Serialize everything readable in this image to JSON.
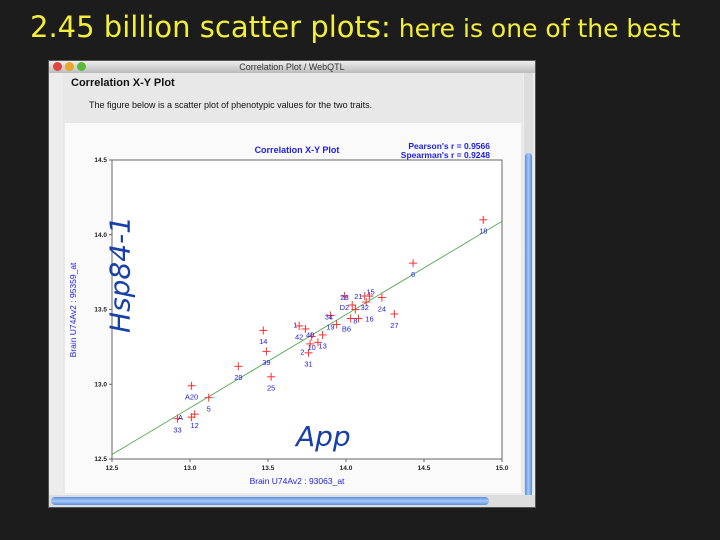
{
  "slide": {
    "title_main": "2.45 billion scatter plots:",
    "title_sub": " here is one of the best"
  },
  "window": {
    "title": "Correlation Plot / WebQTL"
  },
  "page": {
    "heading": "Correlation X-Y Plot",
    "description": "The figure below is a scatter plot of phenotypic values for the two traits."
  },
  "annotations": {
    "y_gene": "Hsp84-1",
    "x_gene": "App"
  },
  "colors": {
    "title": "#f2ee3a",
    "marker": "#ff3030",
    "label": "#2020e0",
    "fit_line": "#40a040"
  },
  "chart_data": {
    "type": "scatter",
    "title": "Correlation X-Y Plot",
    "stats": [
      "Pearson's r = 0.9566",
      "Spearman's r = 0.9248"
    ],
    "xlabel": "Brain U74Av2 : 93063_at",
    "ylabel": "Brain U74Av2 : 95359_at",
    "xlim": [
      12.5,
      15.0
    ],
    "ylim": [
      12.5,
      14.5
    ],
    "xticks": [
      "12.5",
      "13.0",
      "13.5",
      "14.0",
      "14.5",
      "15.0"
    ],
    "yticks": [
      "12.5",
      "13.0",
      "13.5",
      "14.0",
      "14.5"
    ],
    "grid": false,
    "fit_line": {
      "x": [
        12.5,
        15.0
      ],
      "y": [
        12.53,
        14.09
      ]
    },
    "points": [
      {
        "label": "18",
        "x": 14.88,
        "y": 14.1
      },
      {
        "label": "6",
        "x": 14.43,
        "y": 13.81
      },
      {
        "label": "D2",
        "x": 13.99,
        "y": 13.59
      },
      {
        "label": "32",
        "x": 14.12,
        "y": 13.59
      },
      {
        "label": "21",
        "x": 14.15,
        "y": 13.59
      },
      {
        "label": "24",
        "x": 14.23,
        "y": 13.58
      },
      {
        "label": "28",
        "x": 14.04,
        "y": 13.53
      },
      {
        "label": "15",
        "x": 14.13,
        "y": 13.55
      },
      {
        "label": "8",
        "x": 14.06,
        "y": 13.5
      },
      {
        "label": "27",
        "x": 14.31,
        "y": 13.47
      },
      {
        "label": "B6",
        "x": 14.03,
        "y": 13.44
      },
      {
        "label": "16",
        "x": 14.08,
        "y": 13.44
      },
      {
        "label": "19",
        "x": 13.9,
        "y": 13.46
      },
      {
        "label": "34",
        "x": 13.94,
        "y": 13.4
      },
      {
        "label": "42",
        "x": 13.7,
        "y": 13.39
      },
      {
        "label": "1",
        "x": 13.74,
        "y": 13.37
      },
      {
        "label": "10",
        "x": 13.78,
        "y": 13.32
      },
      {
        "label": "13",
        "x": 13.85,
        "y": 13.33
      },
      {
        "label": "2",
        "x": 13.77,
        "y": 13.27
      },
      {
        "label": "40",
        "x": 13.82,
        "y": 13.28
      },
      {
        "label": "31",
        "x": 13.76,
        "y": 13.21
      },
      {
        "label": "14",
        "x": 13.47,
        "y": 13.36
      },
      {
        "label": "39",
        "x": 13.49,
        "y": 13.22
      },
      {
        "label": "29",
        "x": 13.31,
        "y": 13.12
      },
      {
        "label": "25",
        "x": 13.52,
        "y": 13.05
      },
      {
        "label": "A20",
        "x": 13.01,
        "y": 12.99
      },
      {
        "label": "5",
        "x": 13.12,
        "y": 12.91
      },
      {
        "label": "33",
        "x": 12.92,
        "y": 12.77
      },
      {
        "label": "12",
        "x": 13.03,
        "y": 12.8
      },
      {
        "label": "A",
        "x": 13.01,
        "y": 12.78
      }
    ]
  }
}
